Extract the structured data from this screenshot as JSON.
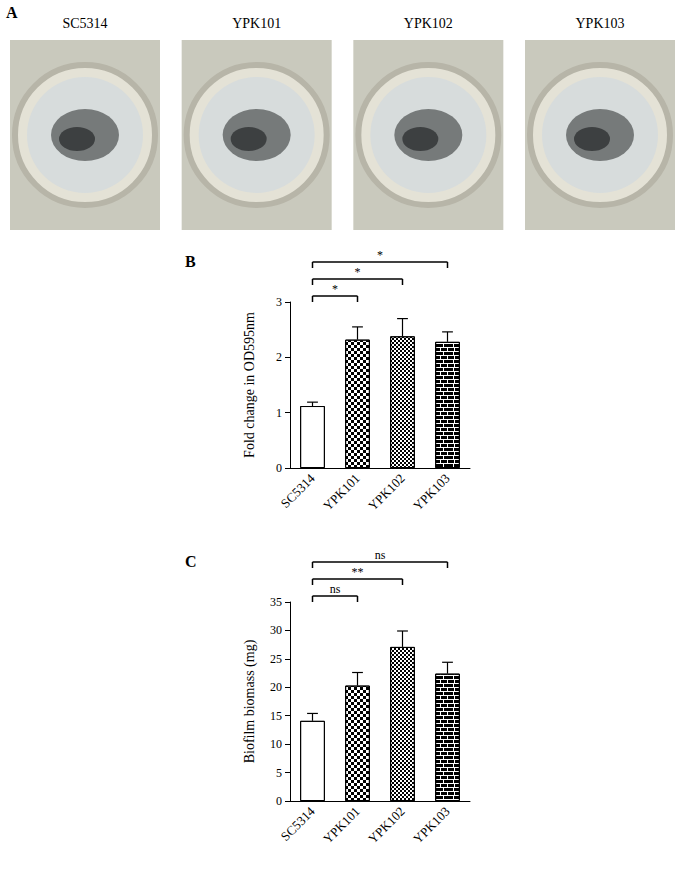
{
  "images": {
    "title": "A",
    "labels": [
      "SC5314",
      "YPK101",
      "YPK102",
      "YPK103"
    ]
  },
  "chart_data": [
    {
      "type": "bar",
      "title": "B",
      "y_label": "Fold change in OD595nm",
      "categories": [
        "SC5314",
        "YPK101",
        "YPK102",
        "YPK103"
      ],
      "values": [
        1.12,
        2.32,
        2.38,
        2.28
      ],
      "errors": [
        0.07,
        0.23,
        0.32,
        0.18
      ],
      "color": "#ffffff",
      "ylim": [
        0,
        3
      ],
      "yticks": [
        0,
        1,
        2,
        3
      ],
      "grid": false,
      "annotations": [
        {
          "from": "SC5314",
          "to": "YPK101",
          "text": "*"
        },
        {
          "from": "SC5314",
          "to": "YPK102",
          "text": "*"
        },
        {
          "from": "SC5314",
          "to": "YPK103",
          "text": "*"
        }
      ]
    },
    {
      "type": "bar",
      "title": "C",
      "y_label": "Biofilm biomass (mg)",
      "categories": [
        "SC5314",
        "YPK101",
        "YPK102",
        "YPK103"
      ],
      "values": [
        14.1,
        20.3,
        27.1,
        22.4
      ],
      "errors": [
        1.3,
        2.3,
        2.8,
        2.0
      ],
      "color": "#ffffff",
      "ylim": [
        0,
        35
      ],
      "yticks": [
        0,
        5,
        10,
        15,
        20,
        25,
        30,
        35
      ],
      "grid": false,
      "annotations": [
        {
          "from": "SC5314",
          "to": "YPK101",
          "text": "ns"
        },
        {
          "from": "SC5314",
          "to": "YPK102",
          "text": "**"
        },
        {
          "from": "SC5314",
          "to": "YPK103",
          "text": "ns"
        }
      ]
    }
  ]
}
